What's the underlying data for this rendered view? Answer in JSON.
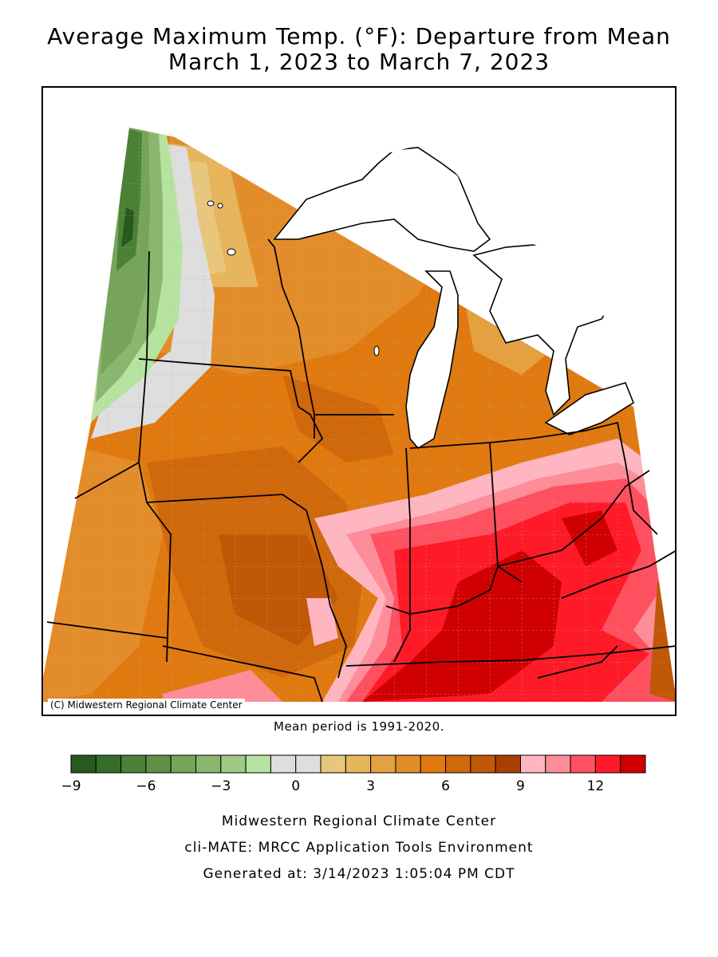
{
  "header": {
    "title_line1": "Average Maximum Temp. (°F): Departure from Mean",
    "title_line2": "March 1, 2023 to March 7, 2023"
  },
  "map": {
    "copyright": "(C) Midwestern Regional Climate Center",
    "mean_note": "Mean period is 1991-2020.",
    "lake_color": "#ffffff"
  },
  "legend": {
    "ticks": [
      "−9",
      "−6",
      "−3",
      "0",
      "3",
      "6",
      "9",
      "12"
    ],
    "tick_values": [
      -9,
      -6,
      -3,
      0,
      3,
      6,
      9,
      12
    ],
    "bins": [
      {
        "from": -9,
        "to": -8,
        "color": "#285a1e"
      },
      {
        "from": -8,
        "to": -7,
        "color": "#356e2a"
      },
      {
        "from": -7,
        "to": -6,
        "color": "#4a8136"
      },
      {
        "from": -6,
        "to": -5,
        "color": "#5e9146"
      },
      {
        "from": -5,
        "to": -4,
        "color": "#75a45a"
      },
      {
        "from": -4,
        "to": -3,
        "color": "#8bb66e"
      },
      {
        "from": -3,
        "to": -2,
        "color": "#a0c886"
      },
      {
        "from": -2,
        "to": -1,
        "color": "#b6e3a0"
      },
      {
        "from": -1,
        "to": 0,
        "color": "#dedede"
      },
      {
        "from": 0,
        "to": 1,
        "color": "#dedede"
      },
      {
        "from": 1,
        "to": 2,
        "color": "#e8c77d"
      },
      {
        "from": 2,
        "to": 3,
        "color": "#e6b55c"
      },
      {
        "from": 3,
        "to": 4,
        "color": "#e5a040"
      },
      {
        "from": 4,
        "to": 5,
        "color": "#e38d2a"
      },
      {
        "from": 5,
        "to": 6,
        "color": "#e07a10"
      },
      {
        "from": 6,
        "to": 7,
        "color": "#d0680c"
      },
      {
        "from": 7,
        "to": 8,
        "color": "#c05808"
      },
      {
        "from": 8,
        "to": 9,
        "color": "#a84004"
      },
      {
        "from": 9,
        "to": 10,
        "color": "#ffb6c1"
      },
      {
        "from": 10,
        "to": 11,
        "color": "#ff8c99"
      },
      {
        "from": 11,
        "to": 12,
        "color": "#ff5060"
      },
      {
        "from": 12,
        "to": 13,
        "color": "#ff1a28"
      },
      {
        "from": 13,
        "to": 14,
        "color": "#d00000"
      }
    ]
  },
  "footer": {
    "line1": "Midwestern Regional Climate Center",
    "line2": "cli-MATE: MRCC Application Tools Environment",
    "line3": "Generated at: 3/14/2023 1:05:04 PM CDT"
  }
}
